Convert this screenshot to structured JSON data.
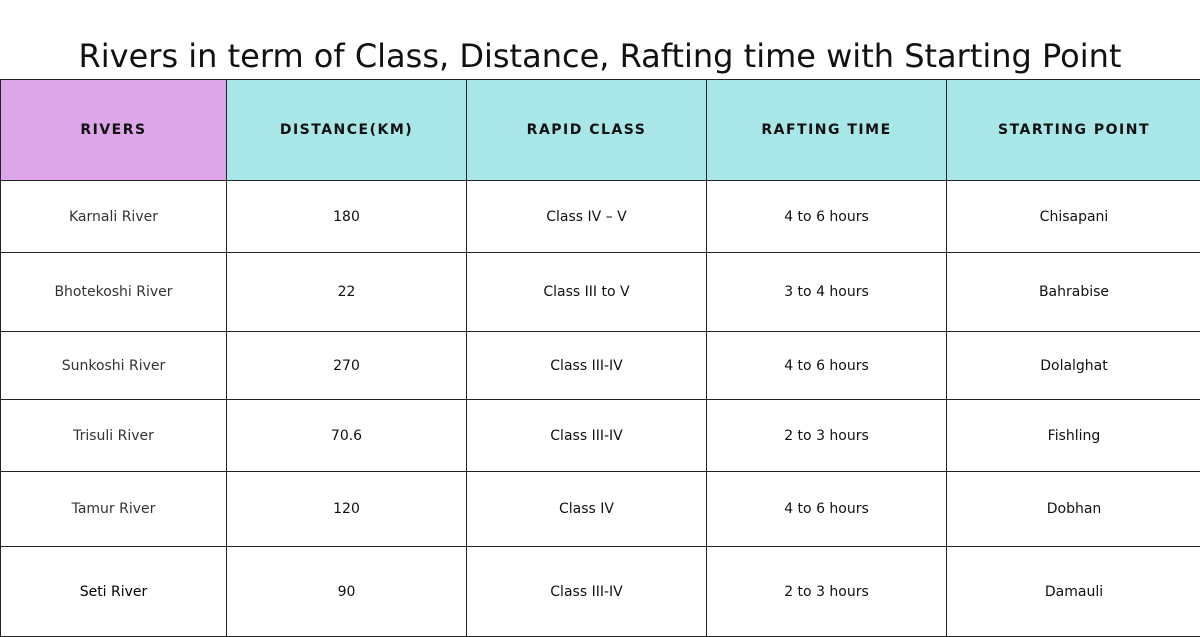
{
  "title": "Rivers in term of Class, Distance, Rafting time with Starting Point",
  "colors": {
    "header_accent": "#dda6e8",
    "header_bg": "#a8e6e8",
    "border": "#222222"
  },
  "table": {
    "headers": [
      "RIVERS",
      "DISTANCE(KM)",
      "RAPID CLASS",
      "RAFTING TIME",
      "STARTING POINT"
    ],
    "rows": [
      [
        "Karnali River",
        "180",
        "Class IV – V",
        "4 to 6 hours",
        "Chisapani"
      ],
      [
        "Bhotekoshi River",
        "22",
        "Class III to V",
        "3 to 4 hours",
        "Bahrabise"
      ],
      [
        "Sunkoshi River",
        "270",
        "Class III-IV",
        "4 to 6 hours",
        "Dolalghat"
      ],
      [
        "Trisuli River",
        "70.6",
        "Class III-IV",
        "2 to 3 hours",
        "Fishling"
      ],
      [
        "Tamur River",
        "120",
        "Class IV",
        "4 to 6 hours",
        "Dobhan"
      ],
      [
        "Seti River",
        "90",
        "Class III-IV",
        "2 to 3 hours",
        "Damauli"
      ]
    ]
  }
}
